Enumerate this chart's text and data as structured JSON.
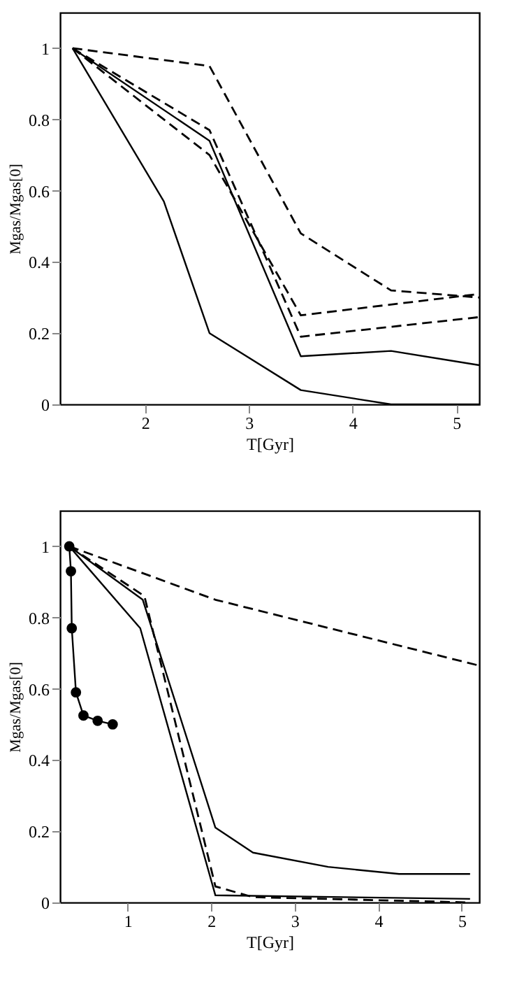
{
  "chart_data": [
    {
      "type": "line",
      "xlabel": "T[Gyr]",
      "ylabel": "Mgas/Mgas[0]",
      "xlim": [
        1.18,
        5.22
      ],
      "ylim": [
        0,
        1.1
      ],
      "xticks": [
        2,
        3,
        4,
        5
      ],
      "yticks": [
        0,
        0.2,
        0.4,
        0.6,
        0.8,
        1
      ],
      "grid": false,
      "series": [
        {
          "color": "#000000",
          "line_style": "solid",
          "x": [
            1.3,
            2.18,
            2.62,
            3.5,
            4.37,
            5.22
          ],
          "values": [
            1,
            0.57,
            0.2,
            0.04,
            0,
            0
          ]
        },
        {
          "color": "#000000",
          "line_style": "solid",
          "x": [
            1.3,
            2.62,
            3.5,
            4.37,
            5.22
          ],
          "values": [
            1,
            0.74,
            0.135,
            0.15,
            0.11
          ]
        },
        {
          "color": "#000000",
          "line_style": "dashed",
          "x": [
            1.3,
            2.62,
            3.5,
            5.22
          ],
          "values": [
            1,
            0.77,
            0.19,
            0.245
          ]
        },
        {
          "color": "#000000",
          "line_style": "dashed",
          "x": [
            1.3,
            2.62,
            3.5,
            5.22
          ],
          "values": [
            1,
            0.7,
            0.25,
            0.31
          ]
        },
        {
          "color": "#000000",
          "line_style": "dashed",
          "x": [
            1.3,
            2.62,
            3.5,
            4.37,
            5.22
          ],
          "values": [
            1,
            0.95,
            0.48,
            0.32,
            0.3
          ]
        }
      ]
    },
    {
      "type": "line",
      "xlabel": "T[Gyr]",
      "ylabel": "Mgas/Mgas[0]",
      "xlim": [
        0.19,
        5.21
      ],
      "ylim": [
        0,
        1.1
      ],
      "xticks": [
        1,
        2,
        3,
        4,
        5
      ],
      "yticks": [
        0,
        0.2,
        0.4,
        0.6,
        0.8,
        1
      ],
      "grid": false,
      "series": [
        {
          "color": "#000000",
          "line_style": "solid",
          "marker": "circle",
          "x": [
            0.3,
            0.32,
            0.33,
            0.38,
            0.47,
            0.64,
            0.82
          ],
          "values": [
            1,
            0.93,
            0.77,
            0.59,
            0.525,
            0.51,
            0.5
          ]
        },
        {
          "color": "#000000",
          "line_style": "solid",
          "x": [
            0.3,
            1.18,
            2.05,
            2.5,
            3.4,
            4.25,
            5.1
          ],
          "values": [
            1,
            0.85,
            0.21,
            0.14,
            0.1,
            0.08,
            0.08
          ]
        },
        {
          "color": "#000000",
          "line_style": "solid",
          "x": [
            0.3,
            1.15,
            2.05,
            5.1
          ],
          "values": [
            1,
            0.77,
            0.02,
            0.01
          ]
        },
        {
          "color": "#000000",
          "line_style": "dashed",
          "x": [
            0.3,
            1.2,
            2.05,
            2.5,
            5.1
          ],
          "values": [
            1,
            0.86,
            0.045,
            0.015,
            0
          ]
        },
        {
          "color": "#000000",
          "line_style": "dashed",
          "x": [
            0.3,
            2.05,
            5.21
          ],
          "values": [
            1,
            0.85,
            0.665
          ]
        }
      ]
    }
  ]
}
